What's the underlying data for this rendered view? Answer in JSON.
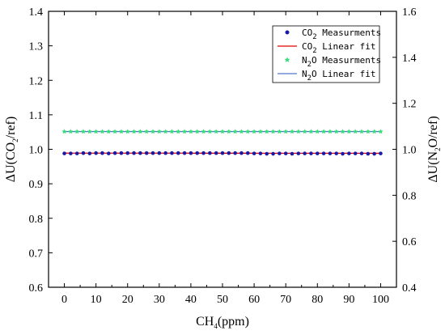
{
  "chart_data": {
    "type": "line",
    "x": [
      0,
      2,
      4,
      6,
      8,
      10,
      12,
      14,
      16,
      18,
      20,
      22,
      24,
      26,
      28,
      30,
      32,
      34,
      36,
      38,
      40,
      42,
      44,
      46,
      48,
      50,
      52,
      54,
      56,
      58,
      60,
      62,
      64,
      66,
      68,
      70,
      72,
      74,
      76,
      78,
      80,
      82,
      84,
      86,
      88,
      90,
      92,
      94,
      96,
      98,
      100
    ],
    "xlabel": {
      "main": "CH",
      "sub": "4",
      "tail": "(ppm)"
    },
    "xlim": [
      -5,
      105
    ],
    "xticks": [
      0,
      10,
      20,
      30,
      40,
      50,
      60,
      70,
      80,
      90,
      100
    ],
    "ylabel_left": {
      "pre": "ΔU(CO",
      "sub": "2",
      "tail": "/ref)"
    },
    "ylim_left": [
      0.6,
      1.4
    ],
    "yticks_left": [
      0.6,
      0.7,
      0.8,
      0.9,
      1.0,
      1.1,
      1.2,
      1.3,
      1.4
    ],
    "ylabel_right": {
      "pre": "ΔU(N",
      "sub": "2",
      "tail": "O/ref)"
    },
    "ylim_right": [
      0.4,
      1.6
    ],
    "yticks_right": [
      0.4,
      0.6,
      0.8,
      1.0,
      1.2,
      1.4,
      1.6
    ],
    "series": [
      {
        "name": "CO2 Measurments",
        "legend": {
          "pre": "CO",
          "sub": "2",
          "tail": " Measurments"
        },
        "axis": "left",
        "kind": "markers",
        "marker": "circle",
        "color": "#1a1aa8",
        "values": [
          0.988,
          0.988,
          0.988,
          0.989,
          0.988,
          0.989,
          0.989,
          0.988,
          0.989,
          0.989,
          0.989,
          0.989,
          0.989,
          0.989,
          0.989,
          0.989,
          0.989,
          0.989,
          0.989,
          0.989,
          0.989,
          0.989,
          0.989,
          0.989,
          0.989,
          0.989,
          0.989,
          0.989,
          0.989,
          0.989,
          0.988,
          0.988,
          0.987,
          0.987,
          0.988,
          0.988,
          0.987,
          0.988,
          0.988,
          0.988,
          0.988,
          0.988,
          0.988,
          0.988,
          0.987,
          0.988,
          0.988,
          0.988,
          0.987,
          0.987,
          0.988
        ]
      },
      {
        "name": "CO2 Linear fit",
        "legend": {
          "pre": "CO",
          "sub": "2",
          "tail": " Linear fit"
        },
        "axis": "left",
        "kind": "line",
        "color": "#e00000",
        "values": [
          0.989,
          0.9889,
          0.9889,
          0.9889,
          0.9889,
          0.9889,
          0.9889,
          0.9889,
          0.9889,
          0.9889,
          0.9889,
          0.9888,
          0.9888,
          0.9888,
          0.9888,
          0.9888,
          0.9888,
          0.9888,
          0.9888,
          0.9888,
          0.9887,
          0.9887,
          0.9887,
          0.9887,
          0.9887,
          0.9887,
          0.9887,
          0.9887,
          0.9887,
          0.9887,
          0.9886,
          0.9886,
          0.9886,
          0.9886,
          0.9886,
          0.9886,
          0.9886,
          0.9886,
          0.9886,
          0.9885,
          0.9885,
          0.9885,
          0.9885,
          0.9885,
          0.9885,
          0.9885,
          0.9885,
          0.9885,
          0.9885,
          0.9884,
          0.9884
        ]
      },
      {
        "name": "N2O Measurments",
        "legend": {
          "pre": "N",
          "sub": "2",
          "tail": "O Measurments"
        },
        "axis": "right",
        "kind": "markers",
        "marker": "star",
        "color": "#33dd77",
        "values": [
          1.077,
          1.077,
          1.077,
          1.077,
          1.077,
          1.077,
          1.077,
          1.077,
          1.077,
          1.077,
          1.077,
          1.077,
          1.077,
          1.077,
          1.077,
          1.077,
          1.077,
          1.077,
          1.077,
          1.077,
          1.077,
          1.077,
          1.077,
          1.077,
          1.077,
          1.077,
          1.077,
          1.077,
          1.077,
          1.077,
          1.077,
          1.077,
          1.077,
          1.077,
          1.077,
          1.077,
          1.077,
          1.077,
          1.077,
          1.077,
          1.077,
          1.077,
          1.077,
          1.077,
          1.077,
          1.077,
          1.077,
          1.077,
          1.077,
          1.077,
          1.077
        ]
      },
      {
        "name": "N2O Linear fit",
        "legend": {
          "pre": "N",
          "sub": "2",
          "tail": "O Linear fit"
        },
        "axis": "right",
        "kind": "line",
        "color": "#5577cc",
        "values": [
          1.077,
          1.077,
          1.077,
          1.077,
          1.077,
          1.077,
          1.077,
          1.077,
          1.077,
          1.077,
          1.077,
          1.077,
          1.077,
          1.077,
          1.077,
          1.077,
          1.077,
          1.077,
          1.077,
          1.077,
          1.077,
          1.077,
          1.077,
          1.077,
          1.077,
          1.077,
          1.077,
          1.077,
          1.077,
          1.077,
          1.077,
          1.077,
          1.077,
          1.077,
          1.077,
          1.077,
          1.077,
          1.077,
          1.077,
          1.077,
          1.077,
          1.077,
          1.077,
          1.077,
          1.077,
          1.077,
          1.077,
          1.077,
          1.077,
          1.077,
          1.077
        ]
      }
    ],
    "legend_position": "top-right",
    "grid": false
  }
}
